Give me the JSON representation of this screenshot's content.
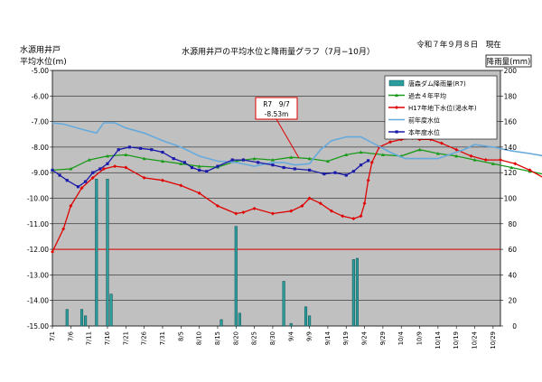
{
  "header": {
    "title": "水源用井戸の平均水位と降雨量グラフ（7月−10月）",
    "date": "令和７年９月８日　現在",
    "left_axis_title_line1": "水源用井戸",
    "left_axis_title_line2": "平均水位(m)",
    "right_axis_title": "降雨量(mm)"
  },
  "callout": {
    "line1": "R7　9/7",
    "line2": "-8.53m"
  },
  "chart_data": {
    "type": "line",
    "title": "水源用井戸の平均水位と降雨量グラフ（7月−10月）",
    "xlabel": "",
    "ylabel": "水源用井戸 平均水位(m)",
    "y2label": "降雨量(mm)",
    "x_start": "7/1",
    "x_end": "10/31",
    "x_tick_labels": [
      "7/1",
      "7/6",
      "7/11",
      "7/16",
      "7/21",
      "7/26",
      "7/31",
      "8/5",
      "8/10",
      "8/15",
      "8/20",
      "8/25",
      "8/30",
      "9/4",
      "9/9",
      "9/14",
      "9/19",
      "9/24",
      "9/29",
      "10/4",
      "10/9",
      "10/14",
      "10/19",
      "10/24",
      "10/29"
    ],
    "ylim": [
      -15.0,
      -5.0
    ],
    "y_ticks": [
      "-5.00",
      "-6.00",
      "-7.00",
      "-8.00",
      "-9.00",
      "-10.00",
      "-11.00",
      "-12.00",
      "-13.00",
      "-14.00",
      "-15.00"
    ],
    "y2lim": [
      0,
      200
    ],
    "y2_ticks": [
      "200",
      "180",
      "160",
      "140",
      "120",
      "100",
      "80",
      "60",
      "40",
      "20",
      "0"
    ],
    "plot_background": "#c0c0c0",
    "grid": true,
    "legend_position": "top-right",
    "reference_line": {
      "y": -12.0,
      "color": "#e00000"
    },
    "series": [
      {
        "name": "",
        "kind": "bar",
        "axis": "y2",
        "color": "#2a9d9d",
        "points": [
          [
            4,
            13
          ],
          [
            8,
            13
          ],
          [
            9,
            8
          ],
          [
            12,
            115
          ],
          [
            15,
            115
          ],
          [
            16,
            25
          ],
          [
            46,
            5
          ],
          [
            50,
            78
          ],
          [
            51,
            10
          ],
          [
            63,
            35
          ],
          [
            65,
            2
          ],
          [
            69,
            15
          ],
          [
            70,
            8
          ],
          [
            82,
            52
          ],
          [
            83,
            53
          ]
        ]
      },
      {
        "name": "",
        "kind": "line",
        "axis": "y1",
        "color": "#1a9a1a",
        "marker": "triangle",
        "points": [
          [
            0,
            -8.9
          ],
          [
            5,
            -8.85
          ],
          [
            10,
            -8.5
          ],
          [
            15,
            -8.35
          ],
          [
            20,
            -8.3
          ],
          [
            25,
            -8.45
          ],
          [
            30,
            -8.55
          ],
          [
            35,
            -8.65
          ],
          [
            40,
            -8.75
          ],
          [
            45,
            -8.78
          ],
          [
            50,
            -8.55
          ],
          [
            55,
            -8.45
          ],
          [
            60,
            -8.5
          ],
          [
            65,
            -8.4
          ],
          [
            70,
            -8.45
          ],
          [
            75,
            -8.55
          ],
          [
            80,
            -8.3
          ],
          [
            84,
            -8.2
          ],
          [
            90,
            -8.3
          ],
          [
            95,
            -8.35
          ],
          [
            100,
            -8.1
          ],
          [
            105,
            -8.25
          ],
          [
            110,
            -8.35
          ],
          [
            115,
            -8.5
          ],
          [
            120,
            -8.65
          ],
          [
            125,
            -8.8
          ],
          [
            130,
            -8.95
          ],
          [
            135,
            -9.1
          ]
        ]
      },
      {
        "name": "",
        "kind": "line",
        "axis": "y1",
        "color": "#e00000",
        "marker": "diamond",
        "points": [
          [
            0,
            -12.1
          ],
          [
            3,
            -11.2
          ],
          [
            5,
            -10.3
          ],
          [
            8,
            -9.6
          ],
          [
            11,
            -9.2
          ],
          [
            14,
            -8.85
          ],
          [
            17,
            -8.75
          ],
          [
            20,
            -8.8
          ],
          [
            25,
            -9.2
          ],
          [
            30,
            -9.3
          ],
          [
            35,
            -9.5
          ],
          [
            40,
            -9.8
          ],
          [
            45,
            -10.3
          ],
          [
            50,
            -10.6
          ],
          [
            52,
            -10.55
          ],
          [
            55,
            -10.4
          ],
          [
            60,
            -10.6
          ],
          [
            65,
            -10.5
          ],
          [
            68,
            -10.3
          ],
          [
            70,
            -10.0
          ],
          [
            73,
            -10.2
          ],
          [
            76,
            -10.5
          ],
          [
            79,
            -10.7
          ],
          [
            82,
            -10.8
          ],
          [
            84,
            -10.7
          ],
          [
            85,
            -10.2
          ],
          [
            86,
            -9.3
          ],
          [
            87,
            -8.6
          ],
          [
            89,
            -8.0
          ],
          [
            92,
            -7.8
          ],
          [
            95,
            -7.7
          ],
          [
            98,
            -7.65
          ],
          [
            100,
            -7.7
          ],
          [
            103,
            -7.7
          ],
          [
            106,
            -7.85
          ],
          [
            110,
            -8.1
          ],
          [
            114,
            -8.35
          ],
          [
            118,
            -8.5
          ],
          [
            122,
            -8.5
          ],
          [
            126,
            -8.65
          ],
          [
            130,
            -8.9
          ],
          [
            135,
            -9.3
          ]
        ]
      },
      {
        "name": "",
        "kind": "line",
        "axis": "y1",
        "color": "#66aadd",
        "marker": "none",
        "points": [
          [
            0,
            -7.05
          ],
          [
            3,
            -7.1
          ],
          [
            8,
            -7.3
          ],
          [
            12,
            -7.45
          ],
          [
            14,
            -7.05
          ],
          [
            17,
            -7.05
          ],
          [
            20,
            -7.25
          ],
          [
            25,
            -7.45
          ],
          [
            30,
            -7.75
          ],
          [
            35,
            -8.0
          ],
          [
            40,
            -8.35
          ],
          [
            45,
            -8.55
          ],
          [
            50,
            -8.6
          ],
          [
            55,
            -8.75
          ],
          [
            60,
            -8.6
          ],
          [
            63,
            -8.6
          ],
          [
            66,
            -8.7
          ],
          [
            70,
            -8.65
          ],
          [
            73,
            -8.1
          ],
          [
            76,
            -7.75
          ],
          [
            80,
            -7.6
          ],
          [
            84,
            -7.6
          ],
          [
            88,
            -7.9
          ],
          [
            92,
            -8.2
          ],
          [
            96,
            -8.45
          ],
          [
            100,
            -8.45
          ],
          [
            105,
            -8.45
          ],
          [
            108,
            -8.3
          ],
          [
            112,
            -8.1
          ],
          [
            115,
            -7.9
          ],
          [
            120,
            -8.0
          ],
          [
            125,
            -8.15
          ],
          [
            130,
            -8.25
          ],
          [
            134,
            -8.35
          ],
          [
            135,
            -8.4
          ]
        ]
      },
      {
        "name": "",
        "kind": "line",
        "axis": "y1",
        "color": "#1a1aaa",
        "marker": "square",
        "points": [
          [
            0,
            -8.9
          ],
          [
            2,
            -9.1
          ],
          [
            4,
            -9.3
          ],
          [
            7,
            -9.55
          ],
          [
            9,
            -9.35
          ],
          [
            11,
            -9.0
          ],
          [
            13,
            -8.85
          ],
          [
            15,
            -8.65
          ],
          [
            18,
            -8.1
          ],
          [
            21,
            -8.0
          ],
          [
            24,
            -8.05
          ],
          [
            27,
            -8.1
          ],
          [
            30,
            -8.2
          ],
          [
            33,
            -8.45
          ],
          [
            36,
            -8.6
          ],
          [
            38,
            -8.8
          ],
          [
            40,
            -8.9
          ],
          [
            42,
            -8.95
          ],
          [
            45,
            -8.75
          ],
          [
            49,
            -8.5
          ],
          [
            52,
            -8.5
          ],
          [
            56,
            -8.6
          ],
          [
            60,
            -8.7
          ],
          [
            63,
            -8.8
          ],
          [
            66,
            -8.85
          ],
          [
            70,
            -8.9
          ],
          [
            74,
            -9.05
          ],
          [
            77,
            -9.0
          ],
          [
            80,
            -9.1
          ],
          [
            82,
            -8.95
          ],
          [
            84,
            -8.7
          ],
          [
            86,
            -8.53
          ]
        ]
      }
    ],
    "legend_entries": [
      "唐森ダム降雨量(R7)",
      "過去４年平均",
      "H17年地下水位(渇水年)",
      "前年度水位",
      "本年度水位"
    ]
  }
}
